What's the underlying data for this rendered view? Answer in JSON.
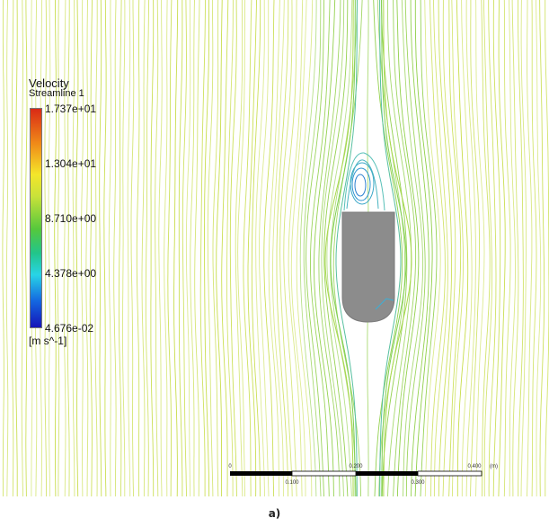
{
  "legend": {
    "title": "Velocity",
    "subtitle": "Streamline 1",
    "ticks": [
      "1.737e+01",
      "1.304e+01",
      "8.710e+00",
      "4.378e+00",
      "4.676e-02"
    ],
    "unit": "[m s^-1]",
    "colors": [
      "#d92a16",
      "#f08b18",
      "#f4e62a",
      "#c9e23a",
      "#56c83c",
      "#22c58a",
      "#28d4e6",
      "#1467e0",
      "#1514b8"
    ]
  },
  "scale_bar": {
    "top_labels": [
      "0",
      "0.200",
      "0.400"
    ],
    "top_unit": "(m)",
    "bottom_labels": [
      "0.100",
      "0.300"
    ]
  },
  "caption": "a)",
  "colors": {
    "streamline_main": "#c8dd4a",
    "streamline_near": "#8fcf47",
    "body": "#8c8c8c",
    "vortex": "#3aa0c8"
  }
}
